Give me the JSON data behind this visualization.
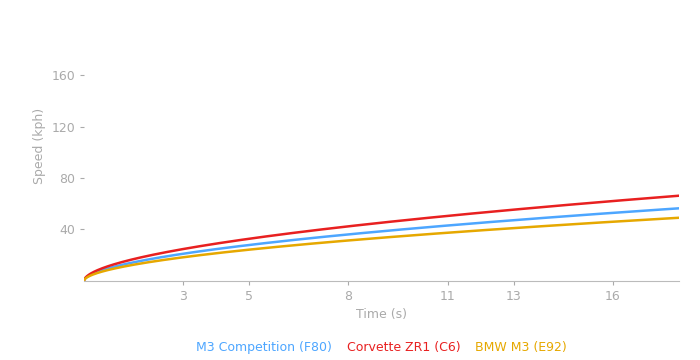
{
  "xlabel": "Time (s)",
  "ylabel": "Speed (kph)",
  "xlim": [
    0,
    18
  ],
  "ylim": [
    0,
    210
  ],
  "xticks": [
    3,
    5,
    8,
    11,
    13,
    16
  ],
  "yticks": [
    40,
    80,
    120,
    160
  ],
  "series": [
    {
      "label": "M3 Competition (F80)",
      "color": "#4da6ff",
      "sqrt_a": 11.5,
      "sqrt_b": 0.55
    },
    {
      "label": "Corvette ZR1 (C6)",
      "color": "#e82020",
      "sqrt_a": 13.5,
      "sqrt_b": 0.55
    },
    {
      "label": "BMW M3 (E92)",
      "color": "#e6a800",
      "sqrt_a": 10.0,
      "sqrt_b": 0.55
    }
  ],
  "background_color": "#ffffff",
  "spine_color": "#bbbbbb",
  "tick_color": "#aaaaaa",
  "label_color": "#aaaaaa",
  "legend_fontsize": 9,
  "axis_label_fontsize": 9,
  "tick_fontsize": 9,
  "linewidth": 1.8
}
